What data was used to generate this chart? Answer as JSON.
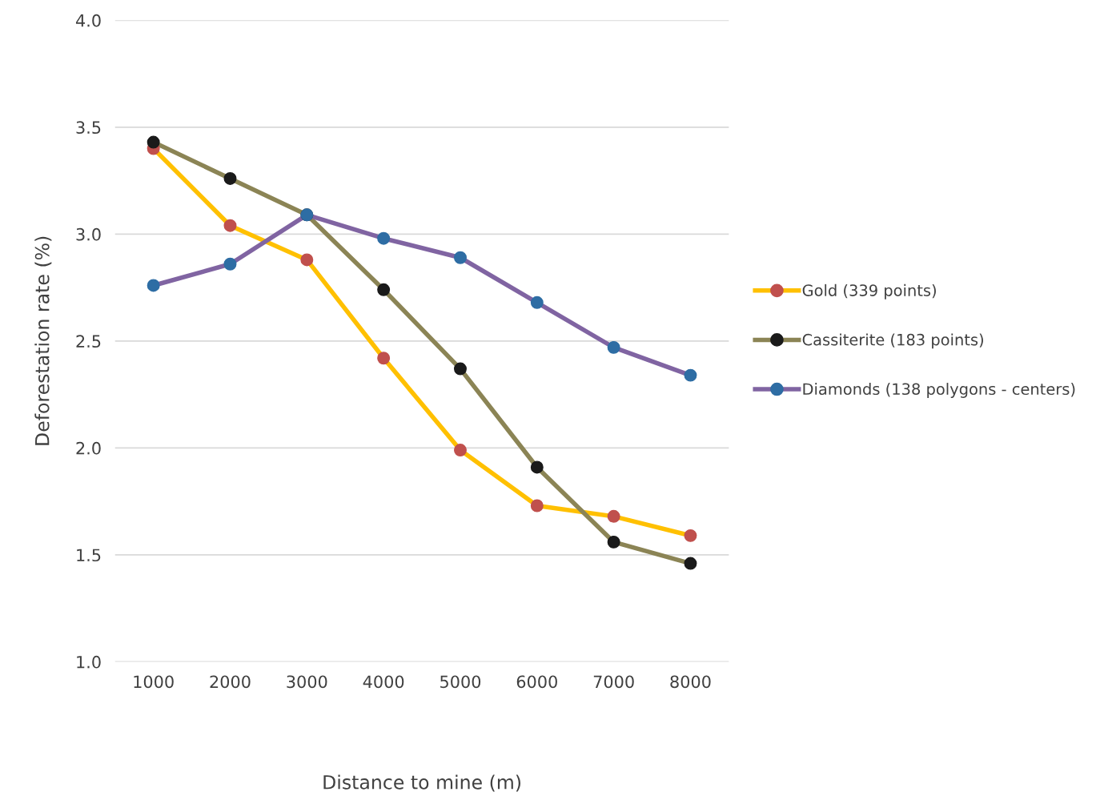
{
  "chart_data": {
    "type": "line",
    "xlabel": "Distance to mine (m)",
    "ylabel": "Deforestation rate (%)",
    "categories": [
      "1000",
      "2000",
      "3000",
      "4000",
      "5000",
      "6000",
      "7000",
      "8000"
    ],
    "ylim": [
      1.0,
      4.0
    ],
    "yticks": [
      {
        "value": 1.0,
        "label": "1.0"
      },
      {
        "value": 1.5,
        "label": "1.5"
      },
      {
        "value": 2.0,
        "label": "2.0"
      },
      {
        "value": 2.5,
        "label": "2.5"
      },
      {
        "value": 3.0,
        "label": "3.0"
      },
      {
        "value": 3.5,
        "label": "3.5"
      },
      {
        "value": 4.0,
        "label": "4.0"
      }
    ],
    "grid": "y",
    "legend": "right",
    "marker": "circle",
    "line_style": "solid",
    "series": [
      {
        "name": "Gold (339 points)",
        "color": "#ffc000",
        "colors": [
          "#c0504d",
          "#c0504d",
          "#c0504d",
          "#c0504d",
          "#c0504d",
          "#c0504d",
          "#c0504d",
          "#c0504d"
        ],
        "values": [
          3.4,
          3.04,
          2.88,
          2.42,
          1.99,
          1.73,
          1.68,
          1.59
        ]
      },
      {
        "name": "Cassiterite (183 points)",
        "color": "#8b8455",
        "colors": [
          "#1a1a1a",
          "#1a1a1a",
          "#1a1a1a",
          "#1a1a1a",
          "#1a1a1a",
          "#1a1a1a",
          "#1a1a1a",
          "#1a1a1a"
        ],
        "values": [
          3.43,
          3.26,
          3.09,
          2.74,
          2.37,
          1.91,
          1.56,
          1.46
        ]
      },
      {
        "name": "Diamonds (138 polygons - centers)",
        "color": "#8064a2",
        "colors": [
          "#2e6da4",
          "#2e6da4",
          "#2e6da4",
          "#2e6da4",
          "#2e6da4",
          "#2e6da4",
          "#2e6da4",
          "#2e6da4"
        ],
        "values": [
          2.76,
          2.86,
          3.09,
          2.98,
          2.89,
          2.68,
          2.47,
          2.34
        ]
      }
    ]
  }
}
